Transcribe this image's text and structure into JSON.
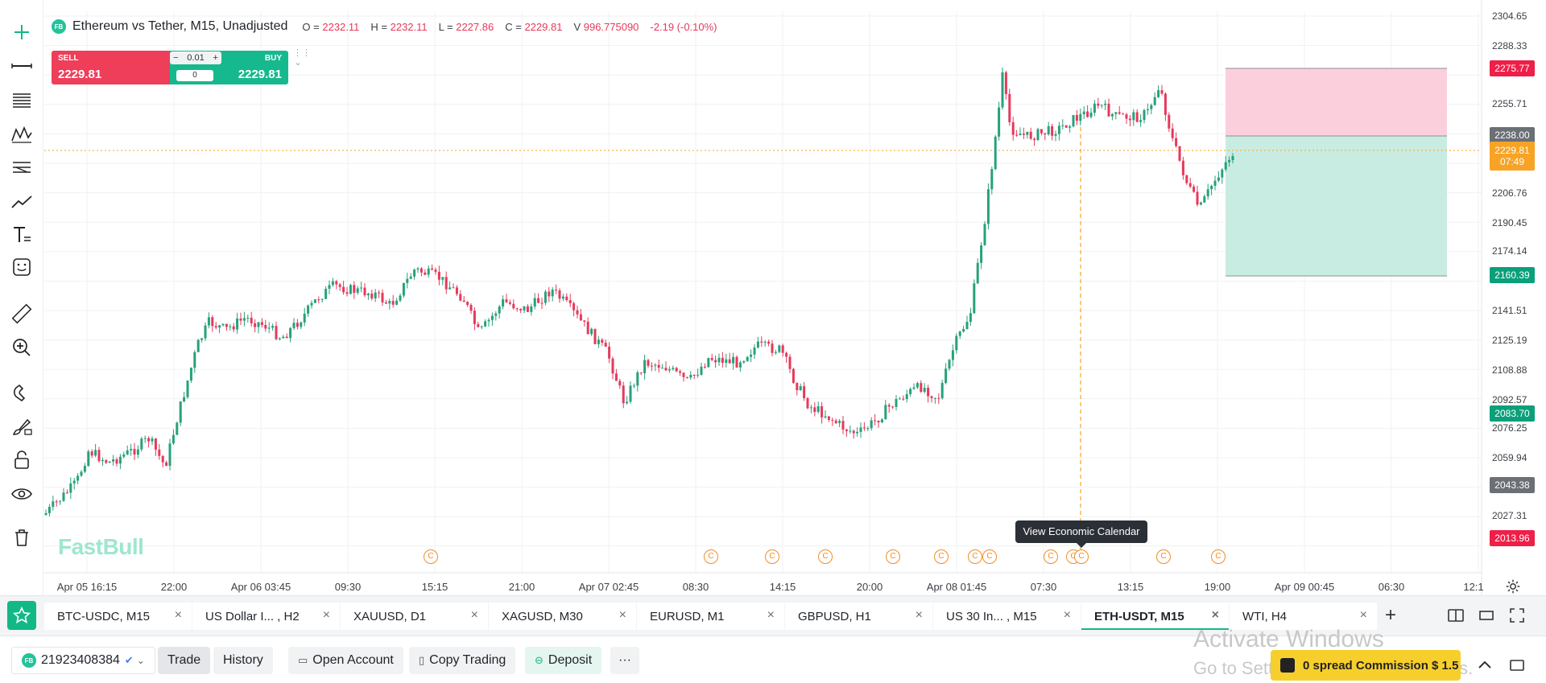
{
  "legend": {
    "badge": "FB",
    "title": "Ethereum vs Tether, M15, Unadjusted",
    "open_label": "O =",
    "open": "2232.11",
    "high_label": "H =",
    "high": "2232.11",
    "low_label": "L =",
    "low": "2227.86",
    "close_label": "C =",
    "close": "2229.81",
    "volume_label": "V",
    "volume": "996.775090",
    "change": "-2.19 (-0.10%)"
  },
  "trade_widget": {
    "sell_label": "SELL",
    "sell_price": "2229.81",
    "buy_label": "BUY",
    "buy_price": "2229.81",
    "minus": "−",
    "qty": "0.01",
    "plus": "+",
    "spread": "0"
  },
  "price_axis": [
    "2304.65",
    "2288.33",
    "2255.71",
    "2206.76",
    "2190.45",
    "2174.14",
    "2141.51",
    "2125.19",
    "2108.88",
    "2092.57",
    "2076.25",
    "2059.94",
    "2027.31"
  ],
  "price_tags": {
    "tp": "2275.77",
    "entry": "2238.00",
    "current": "2229.81",
    "countdown": "07:49",
    "sl": "2160.39",
    "level_green": "2083.70",
    "level_gray": "2043.38",
    "level_red": "2013.96"
  },
  "time_axis": [
    "Apr 05 16:15",
    "22:00",
    "Apr 06 03:45",
    "09:30",
    "15:15",
    "21:00",
    "Apr 07 02:45",
    "08:30",
    "14:15",
    "20:00",
    "Apr 08 01:45",
    "07:30",
    "13:15",
    "19:00",
    "Apr 09 00:45",
    "06:30",
    "12:1"
  ],
  "calendar_icon_glyph": "C",
  "tooltip": "View Economic Calendar",
  "watermark": "FastBull",
  "colors": {
    "up": "#26a17b",
    "down": "#e6395b",
    "accent": "#12b886",
    "tp_zone": "#fbd0dc",
    "sl_zone": "#c9ece2"
  },
  "tabs": [
    {
      "label": "BTC-USDC, M15"
    },
    {
      "label": "US Dollar I... , H2"
    },
    {
      "label": "XAUUSD, D1"
    },
    {
      "label": "XAGUSD, M30"
    },
    {
      "label": "EURUSD, M1"
    },
    {
      "label": "GBPUSD, H1"
    },
    {
      "label": "US 30 In... , M15"
    },
    {
      "label": "ETH-USDT, M15"
    },
    {
      "label": "WTI, H4"
    }
  ],
  "tab_close": "×",
  "tab_add": "+",
  "bottom": {
    "account_badge": "FB",
    "account": "21923408384",
    "trade": "Trade",
    "history": "History",
    "open_account": "Open Account",
    "copy_trading": "Copy Trading",
    "deposit": "Deposit",
    "more": "···",
    "activate_title": "Activate Windows",
    "activate_sub": "Go to Settings to activate Windows.",
    "promo": "0 spread Commission $ 1.5"
  },
  "toolbar_icons": [
    "crosshair-icon",
    "trend-line-icon",
    "fib-levels-icon",
    "pattern-icon",
    "parallel-lines-icon",
    "polyline-icon",
    "text-tool-icon",
    "emoji-icon",
    "ruler-icon",
    "zoom-in-icon",
    "magnet-icon",
    "brush-lock-icon",
    "unlock-icon",
    "eye-icon",
    "trash-icon"
  ]
}
